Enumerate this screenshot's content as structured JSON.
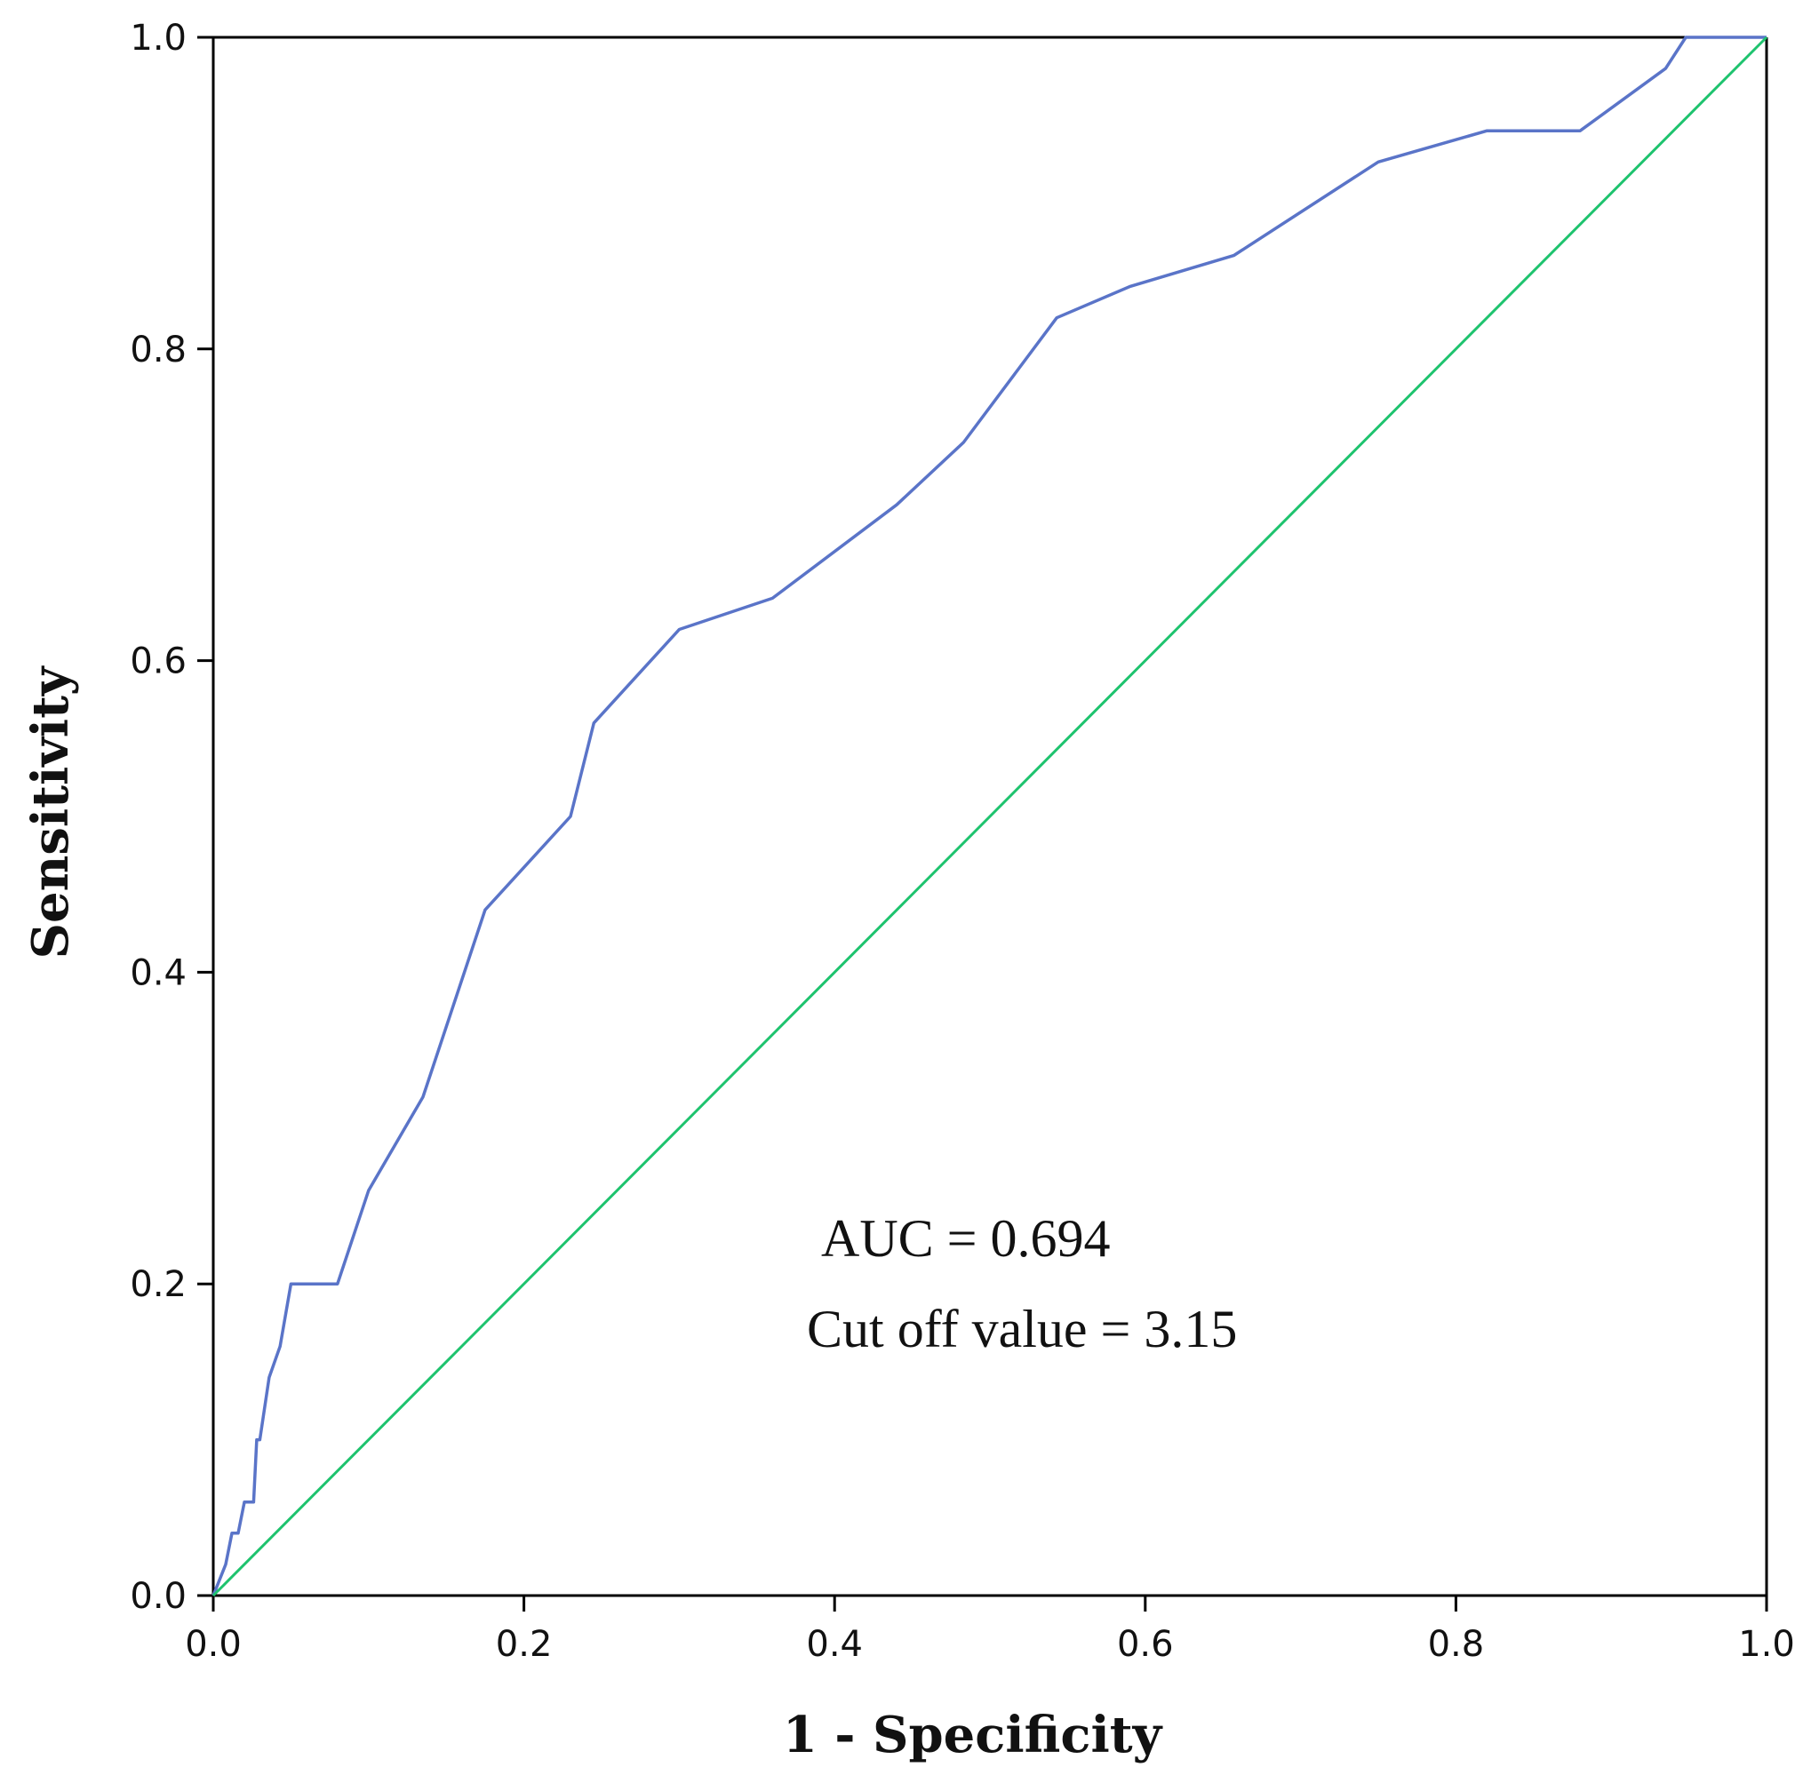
{
  "chart_data": {
    "type": "line",
    "title": "",
    "xlabel": "1 - Specificity",
    "ylabel": "Sensitivity",
    "xlim": [
      0,
      1
    ],
    "ylim": [
      0,
      1
    ],
    "xticks": [
      "0.0",
      "0.2",
      "0.4",
      "0.6",
      "0.8",
      "1.0"
    ],
    "yticks": [
      "0.0",
      "0.2",
      "0.4",
      "0.6",
      "0.8",
      "1.0"
    ],
    "grid": false,
    "series": [
      {
        "name": "ROC curve",
        "color": "#5a74c8",
        "x": [
          0.0,
          0.008,
          0.012,
          0.016,
          0.02,
          0.024,
          0.026,
          0.028,
          0.03,
          0.036,
          0.043,
          0.05,
          0.064,
          0.08,
          0.1,
          0.135,
          0.175,
          0.23,
          0.245,
          0.3,
          0.36,
          0.44,
          0.483,
          0.543,
          0.59,
          0.657,
          0.75,
          0.82,
          0.88,
          0.935,
          0.948,
          1.0
        ],
        "y": [
          0.0,
          0.02,
          0.04,
          0.04,
          0.06,
          0.06,
          0.06,
          0.1,
          0.1,
          0.14,
          0.16,
          0.2,
          0.2,
          0.2,
          0.26,
          0.32,
          0.44,
          0.5,
          0.56,
          0.62,
          0.64,
          0.7,
          0.74,
          0.82,
          0.84,
          0.86,
          0.92,
          0.94,
          0.94,
          0.98,
          1.0,
          1.0
        ]
      },
      {
        "name": "Reference line",
        "color": "#1ec36e",
        "x": [
          0.0,
          1.0
        ],
        "y": [
          0.0,
          1.0
        ]
      }
    ],
    "annotations": [
      "AUC = 0.694",
      "Cut off value = 3.15"
    ]
  }
}
